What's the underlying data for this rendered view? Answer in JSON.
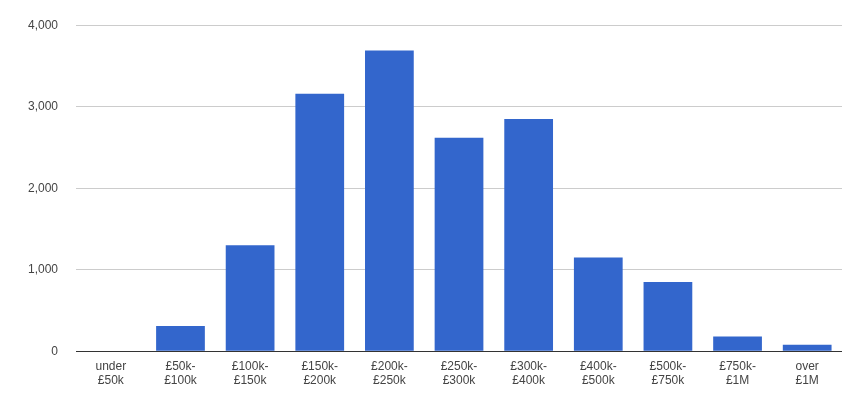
{
  "chart_data": {
    "type": "bar",
    "categories": [
      "under £50k",
      "£50k-£100k",
      "£100k-£150k",
      "£150k-£200k",
      "£200k-£250k",
      "£250k-£300k",
      "£300k-£400k",
      "£400k-£500k",
      "£500k-£750k",
      "£750k-£1M",
      "over £1M"
    ],
    "values": [
      0,
      310,
      1300,
      3160,
      3690,
      2620,
      2850,
      1150,
      850,
      180,
      80
    ],
    "color": "#3366cc",
    "ylim": [
      0,
      4000
    ],
    "yticks": [
      0,
      {
        "value": 1000,
        "label": "1,000"
      },
      {
        "value": 2000,
        "label": "2,000"
      },
      {
        "value": 3000,
        "label": "3,000"
      },
      {
        "value": 4000,
        "label": "4,000"
      }
    ],
    "grid": true
  }
}
